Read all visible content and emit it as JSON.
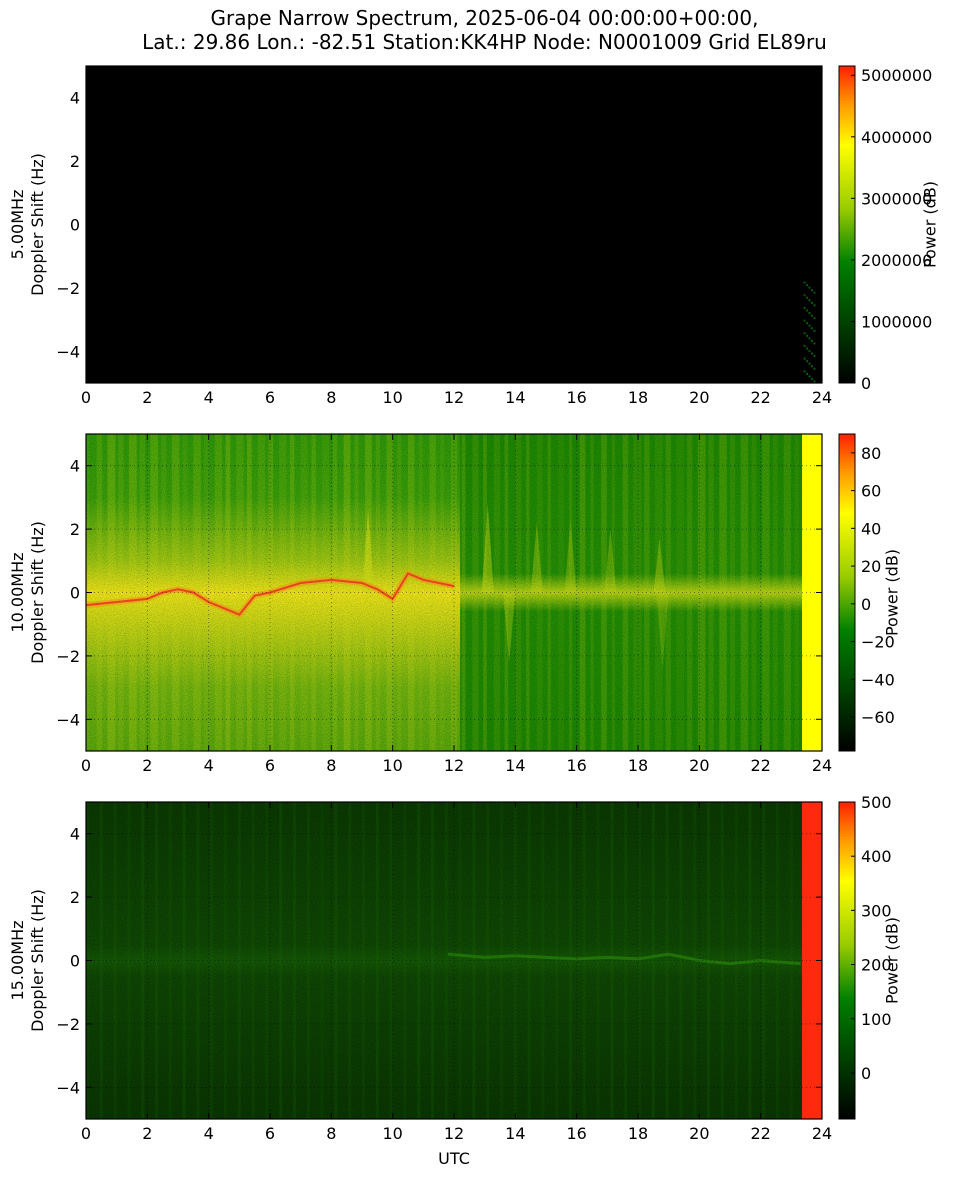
{
  "title_line1": "Grape Narrow Spectrum, 2025-06-04 00:00:00+00:00,",
  "title_line2": "Lat.: 29.86 Lon.: -82.51 Station:KK4HP Node: N0001009 Grid EL89ru",
  "chart_data": [
    {
      "type": "heatmap",
      "ylabel_line1": "5.00MHz",
      "ylabel_line2": "Doppler Shift (Hz)",
      "xlabel": "",
      "xlim": [
        0,
        24
      ],
      "ylim": [
        -5,
        5
      ],
      "x_ticks": [
        "0",
        "2",
        "4",
        "6",
        "8",
        "10",
        "12",
        "14",
        "16",
        "18",
        "20",
        "22",
        "24"
      ],
      "y_ticks": [
        "4",
        "2",
        "0",
        "−2",
        "−4"
      ],
      "colorbar_label": "Power (dB)",
      "colorbar_ticks": [
        "5000000",
        "4000000",
        "3000000",
        "2000000",
        "1000000",
        "0"
      ],
      "colorbar_range": [
        0,
        5150000
      ],
      "grid": true,
      "description_values": {
        "background_level": 0
      }
    },
    {
      "type": "heatmap",
      "ylabel_line1": "10.00MHz",
      "ylabel_line2": "Doppler Shift (Hz)",
      "xlabel": "",
      "xlim": [
        0,
        24
      ],
      "ylim": [
        -5,
        5
      ],
      "x_ticks": [
        "0",
        "2",
        "4",
        "6",
        "8",
        "10",
        "12",
        "14",
        "16",
        "18",
        "20",
        "22",
        "24"
      ],
      "y_ticks": [
        "4",
        "2",
        "0",
        "−2",
        "−4"
      ],
      "colorbar_label": "Power (dB)",
      "colorbar_ticks": [
        "80",
        "60",
        "40",
        "20",
        "0",
        "−20",
        "−40",
        "−60"
      ],
      "colorbar_range": [
        -78,
        90
      ],
      "grid": true,
      "trace_points": [
        [
          0,
          -0.4
        ],
        [
          1,
          -0.3
        ],
        [
          2,
          -0.2
        ],
        [
          2.5,
          0
        ],
        [
          3,
          0.1
        ],
        [
          3.5,
          0
        ],
        [
          4,
          -0.3
        ],
        [
          4.5,
          -0.5
        ],
        [
          5,
          -0.7
        ],
        [
          5.5,
          -0.1
        ],
        [
          6,
          0
        ],
        [
          7,
          0.3
        ],
        [
          8,
          0.4
        ],
        [
          9,
          0.3
        ],
        [
          9.5,
          0.1
        ],
        [
          10,
          -0.2
        ],
        [
          10.5,
          0.6
        ],
        [
          11,
          0.4
        ],
        [
          12,
          0.2
        ]
      ]
    },
    {
      "type": "heatmap",
      "ylabel_line1": "15.00MHz",
      "ylabel_line2": "Doppler Shift (Hz)",
      "xlabel": "UTC",
      "xlim": [
        0,
        24
      ],
      "ylim": [
        -5,
        5
      ],
      "x_ticks": [
        "0",
        "2",
        "4",
        "6",
        "8",
        "10",
        "12",
        "14",
        "16",
        "18",
        "20",
        "22",
        "24"
      ],
      "y_ticks": [
        "4",
        "2",
        "0",
        "−2",
        "−4"
      ],
      "colorbar_label": "Power (dB)",
      "colorbar_ticks": [
        "500",
        "400",
        "300",
        "200",
        "100",
        "0"
      ],
      "colorbar_range": [
        -85,
        500
      ],
      "grid": true
    }
  ],
  "colors": {
    "colormap": [
      "#000000",
      "#006400",
      "#008000",
      "#ffff00",
      "#ff8000",
      "#ff2000"
    ],
    "yellow_band": "#ffff00",
    "red_band": "#ff2a0d"
  }
}
